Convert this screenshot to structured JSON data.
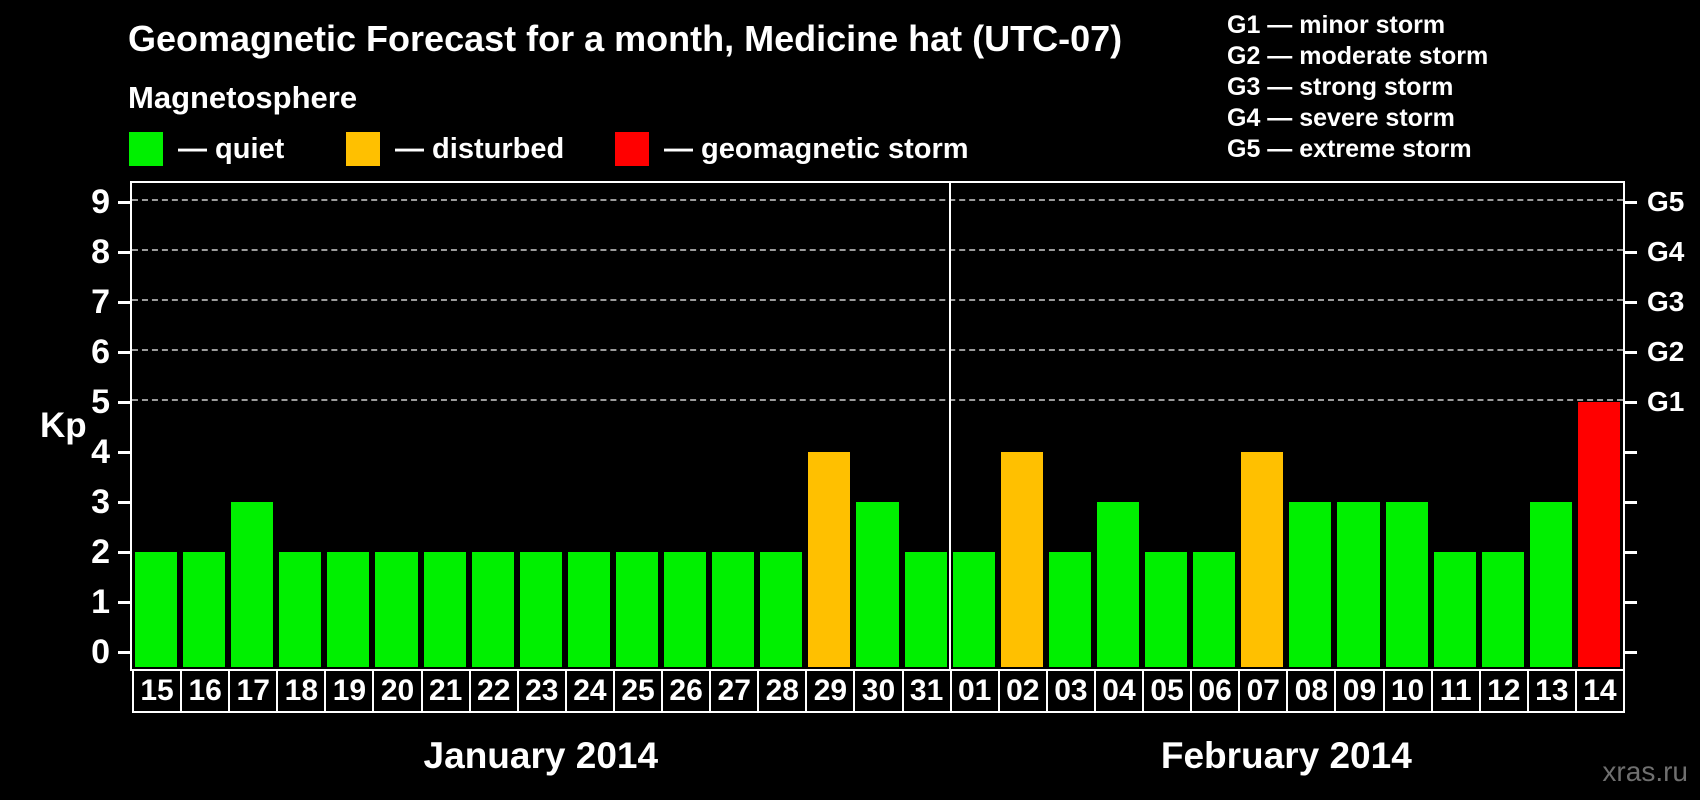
{
  "title": "Geomagnetic Forecast for a month, Medicine hat (UTC-07)",
  "subtitle": "Magnetosphere",
  "legend": {
    "items": [
      {
        "label": "— quiet",
        "status": "quiet"
      },
      {
        "label": "— disturbed",
        "status": "disturbed"
      },
      {
        "label": "— geomagnetic storm",
        "status": "storm"
      }
    ]
  },
  "g_legend": {
    "items": [
      "G1 — minor storm",
      "G2 — moderate storm",
      "G3 — strong storm",
      "G4 — severe storm",
      "G5 — extreme storm"
    ]
  },
  "watermark": "xras.ru",
  "colors": {
    "quiet": "#00f000",
    "disturbed": "#ffc000",
    "storm": "#ff0000",
    "background": "#000000",
    "grid": "#9b9b9b",
    "axis": "#ffffff",
    "watermark": "#6f6f6f"
  },
  "chart_data": {
    "type": "bar",
    "ylabel": "Kp",
    "ylim": [
      0,
      9
    ],
    "y_ticks": [
      0,
      1,
      2,
      3,
      4,
      5,
      6,
      7,
      8,
      9
    ],
    "grid_dashed_at": [
      5,
      6,
      7,
      8,
      9
    ],
    "right_axis": [
      {
        "kp": 5,
        "label": "G1"
      },
      {
        "kp": 6,
        "label": "G2"
      },
      {
        "kp": 7,
        "label": "G3"
      },
      {
        "kp": 8,
        "label": "G4"
      },
      {
        "kp": 9,
        "label": "G5"
      }
    ],
    "legend_position": "top-left",
    "months": [
      {
        "label": "January 2014",
        "days": [
          {
            "day": "15",
            "kp": 2,
            "status": "quiet"
          },
          {
            "day": "16",
            "kp": 2,
            "status": "quiet"
          },
          {
            "day": "17",
            "kp": 3,
            "status": "quiet"
          },
          {
            "day": "18",
            "kp": 2,
            "status": "quiet"
          },
          {
            "day": "19",
            "kp": 2,
            "status": "quiet"
          },
          {
            "day": "20",
            "kp": 2,
            "status": "quiet"
          },
          {
            "day": "21",
            "kp": 2,
            "status": "quiet"
          },
          {
            "day": "22",
            "kp": 2,
            "status": "quiet"
          },
          {
            "day": "23",
            "kp": 2,
            "status": "quiet"
          },
          {
            "day": "24",
            "kp": 2,
            "status": "quiet"
          },
          {
            "day": "25",
            "kp": 2,
            "status": "quiet"
          },
          {
            "day": "26",
            "kp": 2,
            "status": "quiet"
          },
          {
            "day": "27",
            "kp": 2,
            "status": "quiet"
          },
          {
            "day": "28",
            "kp": 2,
            "status": "quiet"
          },
          {
            "day": "29",
            "kp": 4,
            "status": "disturbed"
          },
          {
            "day": "30",
            "kp": 3,
            "status": "quiet"
          },
          {
            "day": "31",
            "kp": 2,
            "status": "quiet"
          }
        ]
      },
      {
        "label": "February 2014",
        "days": [
          {
            "day": "01",
            "kp": 2,
            "status": "quiet"
          },
          {
            "day": "02",
            "kp": 4,
            "status": "disturbed"
          },
          {
            "day": "03",
            "kp": 2,
            "status": "quiet"
          },
          {
            "day": "04",
            "kp": 3,
            "status": "quiet"
          },
          {
            "day": "05",
            "kp": 2,
            "status": "quiet"
          },
          {
            "day": "06",
            "kp": 2,
            "status": "quiet"
          },
          {
            "day": "07",
            "kp": 4,
            "status": "disturbed"
          },
          {
            "day": "08",
            "kp": 3,
            "status": "quiet"
          },
          {
            "day": "09",
            "kp": 3,
            "status": "quiet"
          },
          {
            "day": "10",
            "kp": 3,
            "status": "quiet"
          },
          {
            "day": "11",
            "kp": 2,
            "status": "quiet"
          },
          {
            "day": "12",
            "kp": 2,
            "status": "quiet"
          },
          {
            "day": "13",
            "kp": 3,
            "status": "quiet"
          },
          {
            "day": "14",
            "kp": 5,
            "status": "storm"
          }
        ]
      }
    ]
  }
}
